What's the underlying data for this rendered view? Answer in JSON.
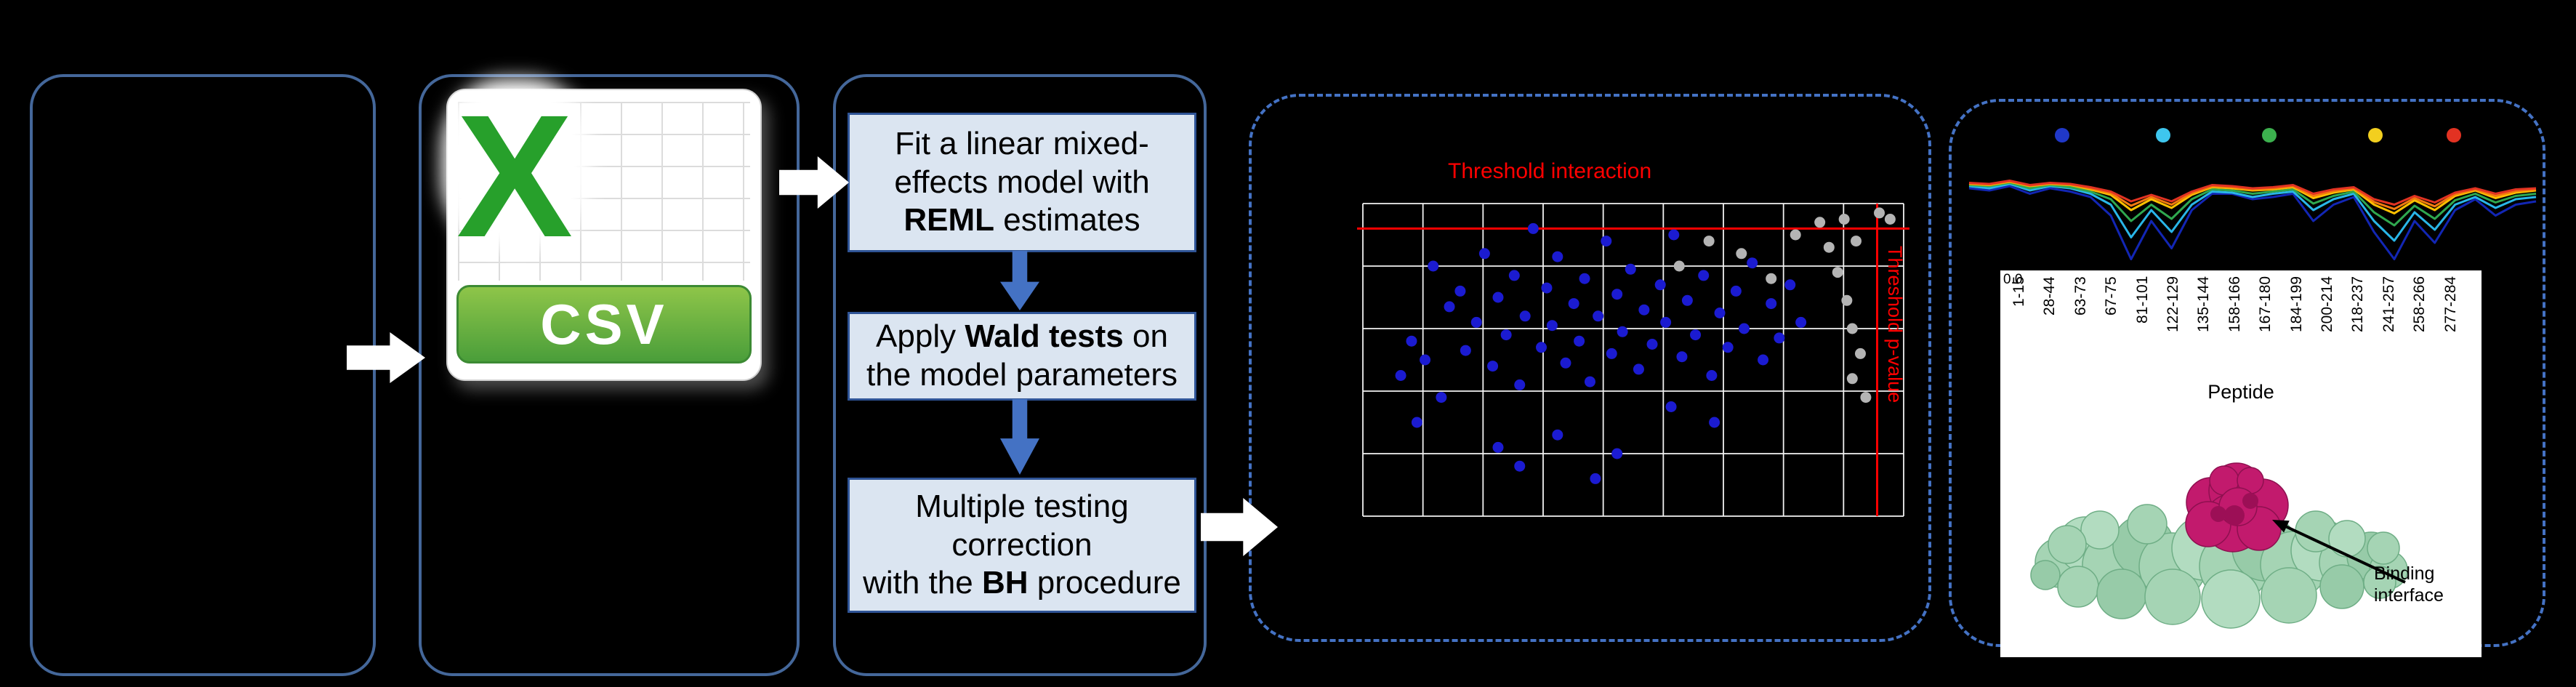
{
  "csv": {
    "x_letter": "X",
    "label": "CSV"
  },
  "pipeline": {
    "steps": [
      {
        "lines": [
          [
            {
              "t": "Fit a linear mixed-"
            }
          ],
          [
            {
              "t": "effects model with"
            }
          ],
          [
            {
              "t": "REML",
              "b": 1
            },
            {
              "t": " estimates"
            }
          ]
        ]
      },
      {
        "lines": [
          [
            {
              "t": "Apply "
            },
            {
              "t": "Wald tests",
              "b": 1
            },
            {
              "t": " on"
            }
          ],
          [
            {
              "t": "the model parameters"
            }
          ]
        ]
      },
      {
        "lines": [
          [
            {
              "t": "Multiple testing"
            }
          ],
          [
            {
              "t": "correction"
            }
          ],
          [
            {
              "t": "with the "
            },
            {
              "t": "BH",
              "b": 1
            },
            {
              "t": " procedure"
            }
          ]
        ]
      }
    ]
  },
  "structure": {
    "label_line1": "Binding",
    "label_line2": "interface"
  },
  "chart_data": [
    {
      "type": "scatter",
      "title": "Threshold interaction",
      "right_axis_label": "Threshold p-value",
      "grid": {
        "v_lines": 10,
        "h_lines": 6,
        "grid_on": true
      },
      "thresholds": {
        "horizontal_frac": 0.08,
        "vertical_frac": 0.951,
        "color": "#ff0000"
      },
      "series": [
        {
          "name": "interaction-points",
          "color": "#1b1bd1",
          "points": [
            [
              0.07,
              0.55
            ],
            [
              0.09,
              0.44
            ],
            [
              0.115,
              0.5
            ],
            [
              0.13,
              0.2
            ],
            [
              0.145,
              0.62
            ],
            [
              0.16,
              0.33
            ],
            [
              0.18,
              0.28
            ],
            [
              0.19,
              0.47
            ],
            [
              0.21,
              0.38
            ],
            [
              0.225,
              0.16
            ],
            [
              0.24,
              0.52
            ],
            [
              0.25,
              0.3
            ],
            [
              0.265,
              0.42
            ],
            [
              0.28,
              0.23
            ],
            [
              0.29,
              0.58
            ],
            [
              0.3,
              0.36
            ],
            [
              0.315,
              0.08
            ],
            [
              0.33,
              0.46
            ],
            [
              0.34,
              0.27
            ],
            [
              0.35,
              0.39
            ],
            [
              0.36,
              0.17
            ],
            [
              0.375,
              0.51
            ],
            [
              0.39,
              0.32
            ],
            [
              0.4,
              0.44
            ],
            [
              0.41,
              0.24
            ],
            [
              0.42,
              0.57
            ],
            [
              0.435,
              0.36
            ],
            [
              0.45,
              0.12
            ],
            [
              0.46,
              0.48
            ],
            [
              0.47,
              0.29
            ],
            [
              0.48,
              0.41
            ],
            [
              0.495,
              0.21
            ],
            [
              0.51,
              0.53
            ],
            [
              0.52,
              0.34
            ],
            [
              0.535,
              0.45
            ],
            [
              0.55,
              0.26
            ],
            [
              0.56,
              0.38
            ],
            [
              0.575,
              0.1
            ],
            [
              0.59,
              0.49
            ],
            [
              0.6,
              0.31
            ],
            [
              0.615,
              0.42
            ],
            [
              0.63,
              0.23
            ],
            [
              0.645,
              0.55
            ],
            [
              0.66,
              0.35
            ],
            [
              0.675,
              0.46
            ],
            [
              0.69,
              0.28
            ],
            [
              0.705,
              0.4
            ],
            [
              0.72,
              0.19
            ],
            [
              0.74,
              0.5
            ],
            [
              0.755,
              0.32
            ],
            [
              0.77,
              0.43
            ],
            [
              0.79,
              0.26
            ],
            [
              0.81,
              0.38
            ],
            [
              0.25,
              0.78
            ],
            [
              0.29,
              0.84
            ],
            [
              0.43,
              0.88
            ],
            [
              0.47,
              0.8
            ],
            [
              0.1,
              0.7
            ],
            [
              0.57,
              0.65
            ],
            [
              0.65,
              0.7
            ],
            [
              0.36,
              0.74
            ]
          ]
        },
        {
          "name": "non-significant-points",
          "color": "#b4b4b4",
          "points": [
            [
              0.585,
              0.2
            ],
            [
              0.64,
              0.12
            ],
            [
              0.7,
              0.16
            ],
            [
              0.755,
              0.24
            ],
            [
              0.8,
              0.1
            ],
            [
              0.845,
              0.06
            ],
            [
              0.862,
              0.14
            ],
            [
              0.878,
              0.22
            ],
            [
              0.89,
              0.05
            ],
            [
              0.895,
              0.31
            ],
            [
              0.905,
              0.4
            ],
            [
              0.912,
              0.12
            ],
            [
              0.92,
              0.48
            ],
            [
              0.905,
              0.56
            ],
            [
              0.93,
              0.62
            ],
            [
              0.975,
              0.05
            ],
            [
              0.955,
              0.03
            ]
          ]
        }
      ]
    },
    {
      "type": "line",
      "xlabel": "Peptide",
      "ytick_label": "0.0",
      "x_labels": [
        "1-15",
        "28-44",
        "63-73",
        "67-75",
        "81-101",
        "122-129",
        "135-144",
        "158-166",
        "167-180",
        "184-199",
        "200-214",
        "218-237",
        "241-257",
        "258-266",
        "277-284"
      ],
      "marker_dots": [
        {
          "x": 0.16,
          "color": "#2038c8"
        },
        {
          "x": 0.34,
          "color": "#3ec6ee"
        },
        {
          "x": 0.53,
          "color": "#3cb04e"
        },
        {
          "x": 0.72,
          "color": "#f2cf1f"
        },
        {
          "x": 0.86,
          "color": "#e23222"
        }
      ],
      "series": [
        {
          "name": "state-blue",
          "color": "#1226b4",
          "values": [
            0.3,
            0.32,
            0.28,
            0.35,
            0.3,
            0.33,
            0.38,
            0.55,
            0.95,
            0.6,
            0.85,
            0.5,
            0.35,
            0.35,
            0.4,
            0.38,
            0.35,
            0.6,
            0.45,
            0.38,
            0.7,
            0.95,
            0.6,
            0.8,
            0.5,
            0.4,
            0.55,
            0.45,
            0.42
          ]
        },
        {
          "name": "state-cyan",
          "color": "#29b6e8",
          "values": [
            0.28,
            0.3,
            0.26,
            0.32,
            0.28,
            0.3,
            0.35,
            0.45,
            0.75,
            0.5,
            0.7,
            0.45,
            0.33,
            0.34,
            0.38,
            0.35,
            0.33,
            0.5,
            0.4,
            0.35,
            0.6,
            0.78,
            0.52,
            0.68,
            0.45,
            0.38,
            0.48,
            0.4,
            0.38
          ]
        },
        {
          "name": "state-green",
          "color": "#2fa84f",
          "values": [
            0.27,
            0.28,
            0.25,
            0.3,
            0.27,
            0.29,
            0.33,
            0.4,
            0.6,
            0.45,
            0.58,
            0.4,
            0.31,
            0.32,
            0.35,
            0.33,
            0.31,
            0.44,
            0.37,
            0.33,
            0.52,
            0.64,
            0.46,
            0.58,
            0.41,
            0.35,
            0.43,
            0.37,
            0.35
          ]
        },
        {
          "name": "state-yellow",
          "color": "#ffc000",
          "values": [
            0.26,
            0.27,
            0.24,
            0.28,
            0.26,
            0.27,
            0.31,
            0.36,
            0.5,
            0.4,
            0.48,
            0.36,
            0.29,
            0.3,
            0.32,
            0.31,
            0.29,
            0.39,
            0.34,
            0.31,
            0.45,
            0.53,
            0.41,
            0.5,
            0.37,
            0.32,
            0.39,
            0.34,
            0.32
          ]
        },
        {
          "name": "state-orange",
          "color": "#f3790f",
          "values": [
            0.255,
            0.265,
            0.235,
            0.275,
            0.255,
            0.265,
            0.3,
            0.345,
            0.46,
            0.38,
            0.45,
            0.345,
            0.28,
            0.29,
            0.31,
            0.3,
            0.28,
            0.37,
            0.325,
            0.3,
            0.425,
            0.49,
            0.39,
            0.465,
            0.355,
            0.31,
            0.37,
            0.325,
            0.31
          ]
        },
        {
          "name": "state-red",
          "color": "#e23322",
          "values": [
            0.25,
            0.26,
            0.23,
            0.27,
            0.25,
            0.26,
            0.29,
            0.33,
            0.42,
            0.36,
            0.42,
            0.33,
            0.27,
            0.28,
            0.3,
            0.29,
            0.27,
            0.35,
            0.31,
            0.29,
            0.4,
            0.45,
            0.37,
            0.43,
            0.34,
            0.3,
            0.35,
            0.31,
            0.3
          ]
        }
      ]
    }
  ]
}
